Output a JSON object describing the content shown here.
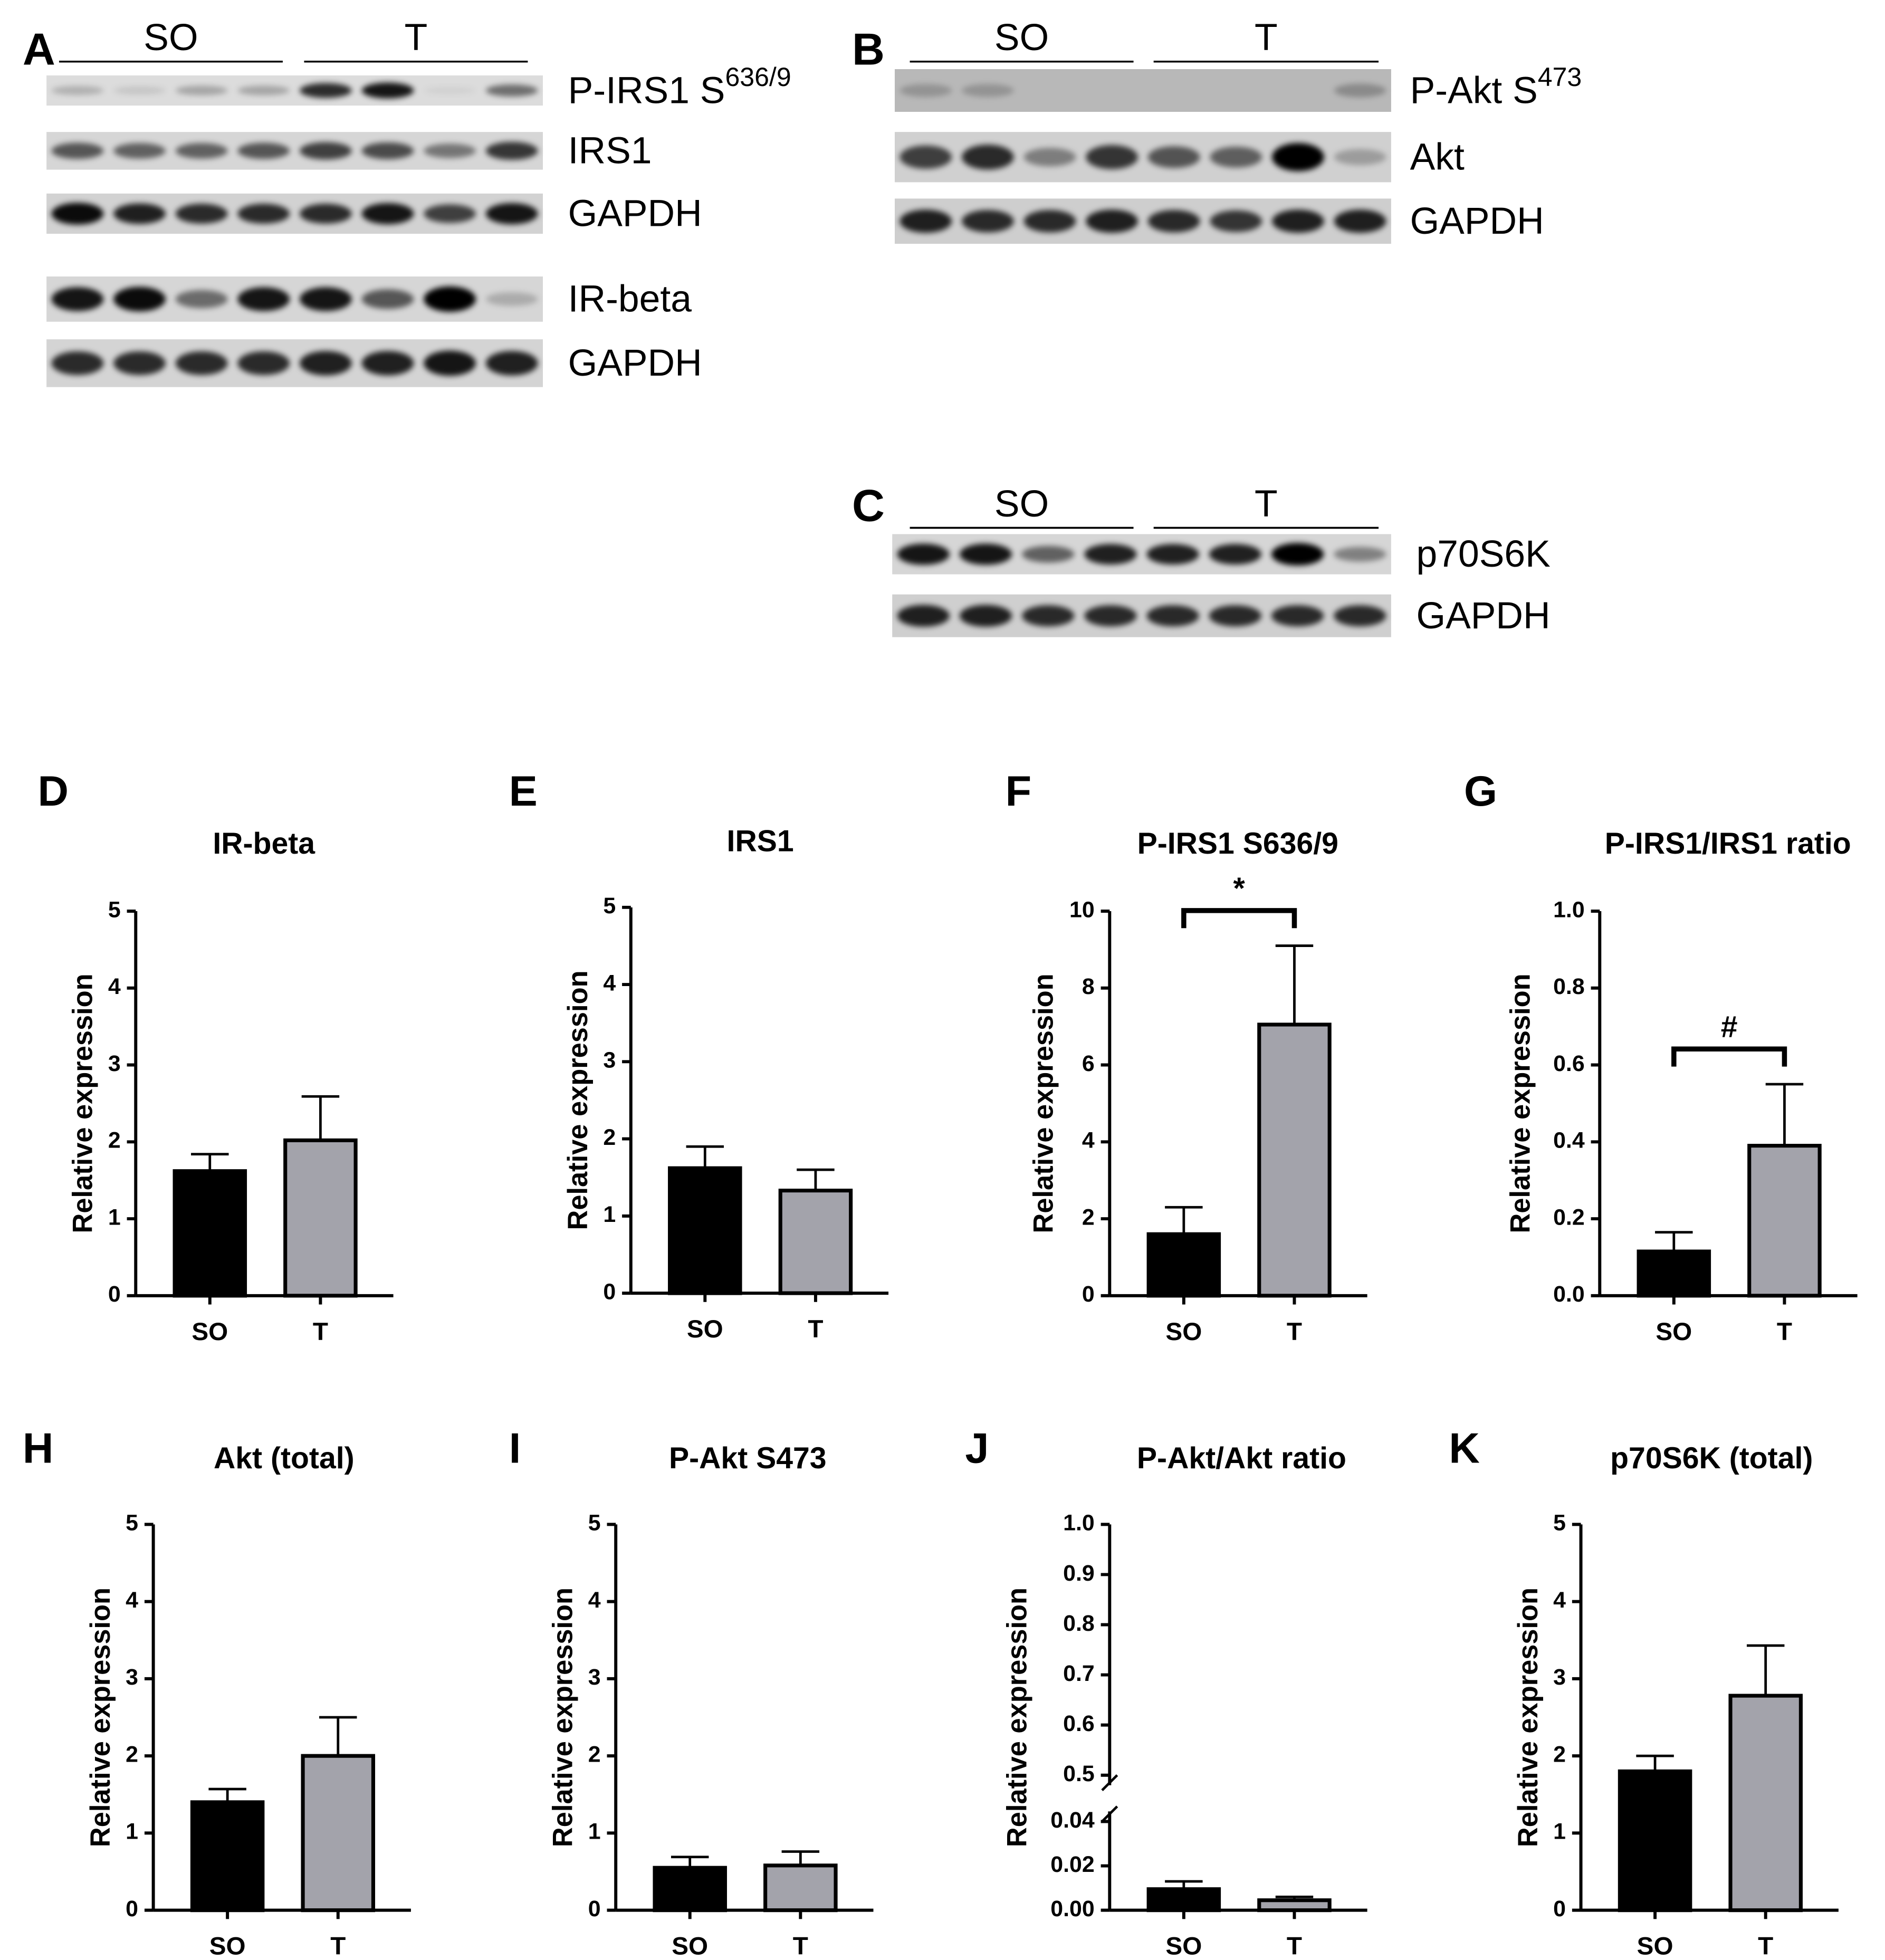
{
  "blots": [
    {
      "letter": "A",
      "groups": [
        "SO",
        "T"
      ],
      "rows": [
        {
          "label": "P-IRS1 S",
          "sup": "636/9"
        },
        {
          "label": "IRS1"
        },
        {
          "label": "GAPDH"
        },
        {
          "label": "IR-beta"
        },
        {
          "label": "GAPDH"
        }
      ]
    },
    {
      "letter": "B",
      "groups": [
        "SO",
        "T"
      ],
      "rows": [
        {
          "label": "P-Akt S",
          "sup": "473"
        },
        {
          "label": "Akt"
        },
        {
          "label": "GAPDH"
        }
      ]
    },
    {
      "letter": "C",
      "groups": [
        "SO",
        "T"
      ],
      "rows": [
        {
          "label": "p70S6K"
        },
        {
          "label": "GAPDH"
        }
      ]
    }
  ],
  "chart_data": [
    {
      "type": "bar",
      "panel": "D",
      "title": "IR-beta",
      "ylabel": "Relative expression",
      "categories": [
        "SO",
        "T"
      ],
      "values": [
        1.62,
        2.02
      ],
      "errors": [
        0.22,
        0.57
      ],
      "colors": [
        "#000000",
        "#a3a3ab"
      ],
      "edgecolor": "#000000",
      "ylim": [
        0,
        5
      ],
      "yticks": [
        0,
        1,
        2,
        3,
        4,
        5
      ]
    },
    {
      "type": "bar",
      "panel": "E",
      "title": "IRS1",
      "ylabel": "Relative expression",
      "categories": [
        "SO",
        "T"
      ],
      "values": [
        1.62,
        1.33
      ],
      "errors": [
        0.28,
        0.27
      ],
      "colors": [
        "#000000",
        "#a3a3ab"
      ],
      "edgecolor": "#000000",
      "ylim": [
        0,
        5
      ],
      "yticks": [
        0,
        1,
        2,
        3,
        4,
        5
      ]
    },
    {
      "type": "bar",
      "panel": "F",
      "title": "P-IRS1 S636/9",
      "ylabel": "Relative expression",
      "categories": [
        "SO",
        "T"
      ],
      "values": [
        1.6,
        7.05
      ],
      "errors": [
        0.7,
        2.05
      ],
      "colors": [
        "#000000",
        "#a3a3ab"
      ],
      "edgecolor": "#000000",
      "ylim": [
        0,
        10
      ],
      "yticks": [
        0,
        2,
        4,
        6,
        8,
        10
      ],
      "annotation": "*"
    },
    {
      "type": "bar",
      "panel": "G",
      "title": "P-IRS1/IRS1 ratio",
      "ylabel": "Relative expression",
      "categories": [
        "SO",
        "T"
      ],
      "values": [
        0.115,
        0.39
      ],
      "errors": [
        0.05,
        0.16
      ],
      "colors": [
        "#000000",
        "#a3a3ab"
      ],
      "edgecolor": "#000000",
      "ylim": [
        0,
        1
      ],
      "yticks": [
        {
          "value": 0,
          "label": "0.0"
        },
        0.2,
        0.4,
        0.6,
        0.8,
        {
          "value": 1,
          "label": "1.0"
        }
      ],
      "annotation": "#"
    },
    {
      "type": "bar",
      "panel": "H",
      "title": "Akt (total)",
      "ylabel": "Relative expression",
      "categories": [
        "SO",
        "T"
      ],
      "values": [
        1.4,
        2.0
      ],
      "errors": [
        0.17,
        0.5
      ],
      "colors": [
        "#000000",
        "#a3a3ab"
      ],
      "edgecolor": "#000000",
      "ylim": [
        0,
        5
      ],
      "yticks": [
        0,
        1,
        2,
        3,
        4,
        5
      ]
    },
    {
      "type": "bar",
      "panel": "I",
      "title": "P-Akt S473",
      "ylabel": "Relative expression",
      "categories": [
        "SO",
        "T"
      ],
      "values": [
        0.55,
        0.58
      ],
      "errors": [
        0.14,
        0.18
      ],
      "colors": [
        "#000000",
        "#a3a3ab"
      ],
      "edgecolor": "#000000",
      "ylim": [
        0,
        5
      ],
      "yticks": [
        0,
        1,
        2,
        3,
        4,
        5
      ]
    },
    {
      "type": "bar",
      "panel": "J",
      "title": "P-Akt/Akt ratio",
      "ylabel": "Relative expression",
      "categories": [
        "SO",
        "T"
      ],
      "values": [
        0.0095,
        0.0045
      ],
      "errors": [
        0.0035,
        0.0015
      ],
      "colors": [
        "#000000",
        "#a3a3ab"
      ],
      "edgecolor": "#000000",
      "ylim": [
        0,
        1
      ],
      "ybreak": [
        0.04,
        0.5
      ],
      "yticks": [
        {
          "value": 0,
          "label": "0.00"
        },
        0.02,
        0.04,
        0.5,
        0.6,
        0.7,
        0.8,
        0.9,
        {
          "value": 1,
          "label": "1.0"
        }
      ]
    },
    {
      "type": "bar",
      "panel": "K",
      "title": "p70S6K (total)",
      "ylabel": "Relative expression",
      "categories": [
        "SO",
        "T"
      ],
      "values": [
        1.8,
        2.78
      ],
      "errors": [
        0.2,
        0.65
      ],
      "colors": [
        "#000000",
        "#a3a3ab"
      ],
      "edgecolor": "#000000",
      "ylim": [
        0,
        5
      ],
      "yticks": [
        0,
        1,
        2,
        3,
        4,
        5
      ]
    }
  ]
}
